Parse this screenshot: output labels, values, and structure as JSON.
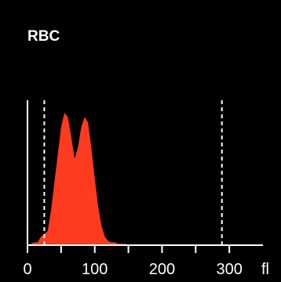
{
  "chart_data": {
    "type": "area",
    "title": "RBC",
    "xlabel": "fl",
    "ylabel": "",
    "xlim": [
      0,
      350
    ],
    "ylim": [
      0,
      1
    ],
    "x_ticks": [
      0,
      50,
      100,
      150,
      200,
      250,
      300
    ],
    "x_tick_labels": [
      "0",
      "",
      "100",
      "",
      "200",
      "",
      "300"
    ],
    "grid": false,
    "background": "#000000",
    "fill_color": "#ff3b1f",
    "axis_color": "#ffffff",
    "markers": [
      {
        "name": "lower-discriminator",
        "x": 25,
        "style": "dashed"
      },
      {
        "name": "upper-discriminator",
        "x": 289,
        "style": "dashed"
      }
    ],
    "series": [
      {
        "x": [
          0,
          5,
          10,
          15,
          20,
          25,
          30,
          35,
          40,
          45,
          50,
          55,
          60,
          65,
          70,
          75,
          80,
          85,
          90,
          95,
          100,
          105,
          110,
          115,
          120,
          125,
          130,
          135,
          140,
          145,
          150
        ],
        "values": [
          0,
          0.01,
          0.02,
          0.02,
          0.06,
          0.08,
          0.1,
          0.25,
          0.45,
          0.65,
          0.85,
          0.95,
          0.92,
          0.78,
          0.62,
          0.7,
          0.85,
          0.92,
          0.88,
          0.7,
          0.48,
          0.28,
          0.14,
          0.06,
          0.03,
          0.02,
          0.02,
          0.01,
          0.01,
          0.01,
          0
        ]
      }
    ]
  }
}
